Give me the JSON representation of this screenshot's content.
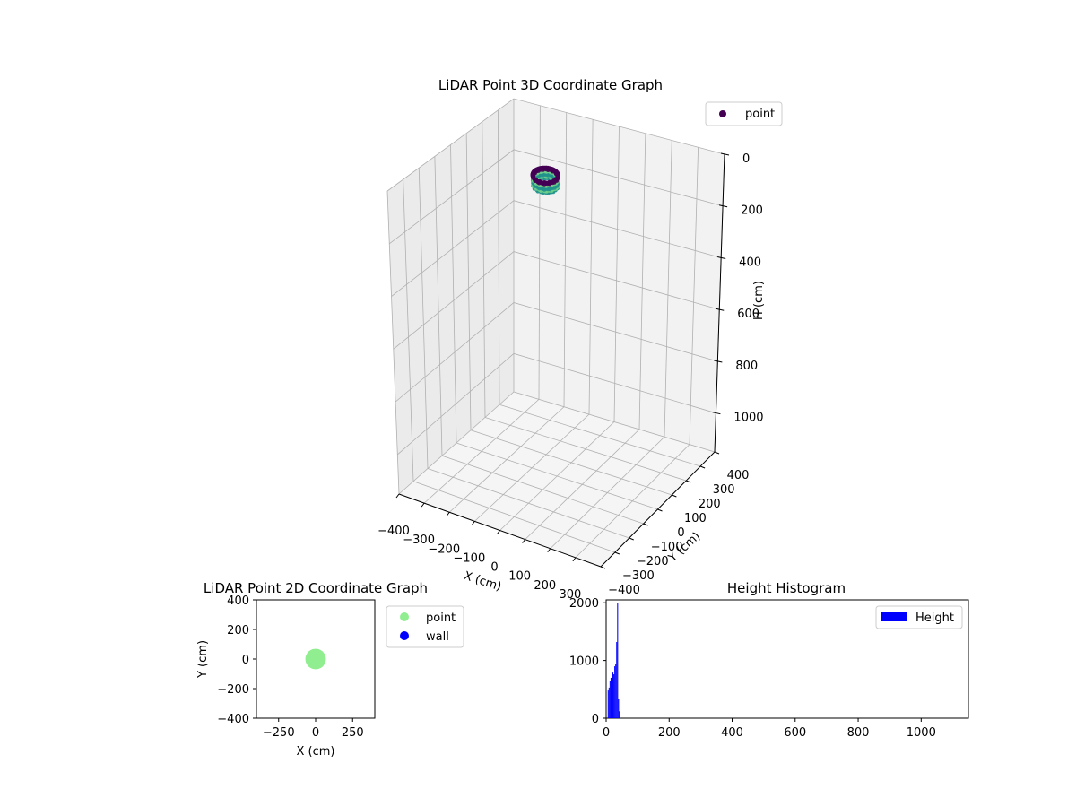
{
  "colors": {
    "grid": "#b0b0b0",
    "pane_dark": "#ebebeb",
    "pane_mid": "#f2f2f2",
    "pane_floor": "#f5f5f5",
    "point_dark": "#440154",
    "point_teal": "#21918c",
    "point_green": "#6fcf8a",
    "point_2d": "#90ee90",
    "wall": "#0000ff",
    "hist": "#0000ff"
  },
  "chart_data": [
    {
      "type": "scatter",
      "projection": "3d",
      "title": "LiDAR Point 3D Coordinate Graph",
      "xlabel": "X (cm)",
      "ylabel": "Y (cm)",
      "zlabel": "H (cm)",
      "xlim": [
        -400,
        400
      ],
      "ylim": [
        -400,
        400
      ],
      "zlim": [
        1150,
        0
      ],
      "z_inverted": true,
      "grid": true,
      "x_ticks": [
        "−400",
        "−300",
        "−200",
        "−100",
        "0",
        "100",
        "200",
        "300"
      ],
      "y_ticks": [
        "−400",
        "−300",
        "−200",
        "−100",
        "0",
        "100",
        "200",
        "300",
        "400"
      ],
      "z_ticks": [
        "0",
        "200",
        "400",
        "600",
        "800",
        "1000"
      ],
      "legend": {
        "position": "top-right",
        "entries": [
          "point"
        ]
      },
      "series": [
        {
          "name": "point",
          "shape": "ring",
          "center": {
            "x": 0,
            "y": 0,
            "h": 40
          },
          "radius_cm": 45,
          "height_range_cm": [
            20,
            60
          ],
          "colormap": "viridis"
        }
      ]
    },
    {
      "type": "scatter",
      "title": "LiDAR Point 2D Coordinate Graph",
      "xlabel": "X (cm)",
      "ylabel": "Y (cm)",
      "xlim": [
        -400,
        400
      ],
      "ylim": [
        -400,
        400
      ],
      "x_ticks": [
        "−250",
        "0",
        "250"
      ],
      "y_ticks": [
        "400",
        "200",
        "0",
        "−200",
        "−400"
      ],
      "legend": {
        "position": "outside-right",
        "entries": [
          "point",
          "wall"
        ]
      },
      "series": [
        {
          "name": "point",
          "center": {
            "x": 0,
            "y": 0
          },
          "radius_cm": 45
        },
        {
          "name": "wall",
          "points": []
        }
      ]
    },
    {
      "type": "bar",
      "subtype": "histogram",
      "title": "Height Histogram",
      "xlim": [
        0,
        1150
      ],
      "ylim": [
        0,
        2050
      ],
      "x_ticks": [
        "0",
        "200",
        "400",
        "600",
        "800",
        "1000"
      ],
      "y_ticks": [
        "0",
        "1000",
        "2000"
      ],
      "legend": {
        "position": "top-right",
        "entries": [
          "Height"
        ]
      },
      "series": [
        {
          "name": "Height",
          "bins": [
            {
              "x0": 5,
              "x1": 8,
              "count": 480
            },
            {
              "x0": 8,
              "x1": 11,
              "count": 530
            },
            {
              "x0": 11,
              "x1": 14,
              "count": 650
            },
            {
              "x0": 14,
              "x1": 17,
              "count": 700
            },
            {
              "x0": 17,
              "x1": 20,
              "count": 680
            },
            {
              "x0": 20,
              "x1": 23,
              "count": 790
            },
            {
              "x0": 23,
              "x1": 26,
              "count": 760
            },
            {
              "x0": 26,
              "x1": 29,
              "count": 900
            },
            {
              "x0": 29,
              "x1": 32,
              "count": 940
            },
            {
              "x0": 32,
              "x1": 35,
              "count": 1320
            },
            {
              "x0": 35,
              "x1": 38,
              "count": 2000
            },
            {
              "x0": 38,
              "x1": 41,
              "count": 330
            },
            {
              "x0": 41,
              "x1": 44,
              "count": 120
            }
          ]
        }
      ]
    }
  ]
}
